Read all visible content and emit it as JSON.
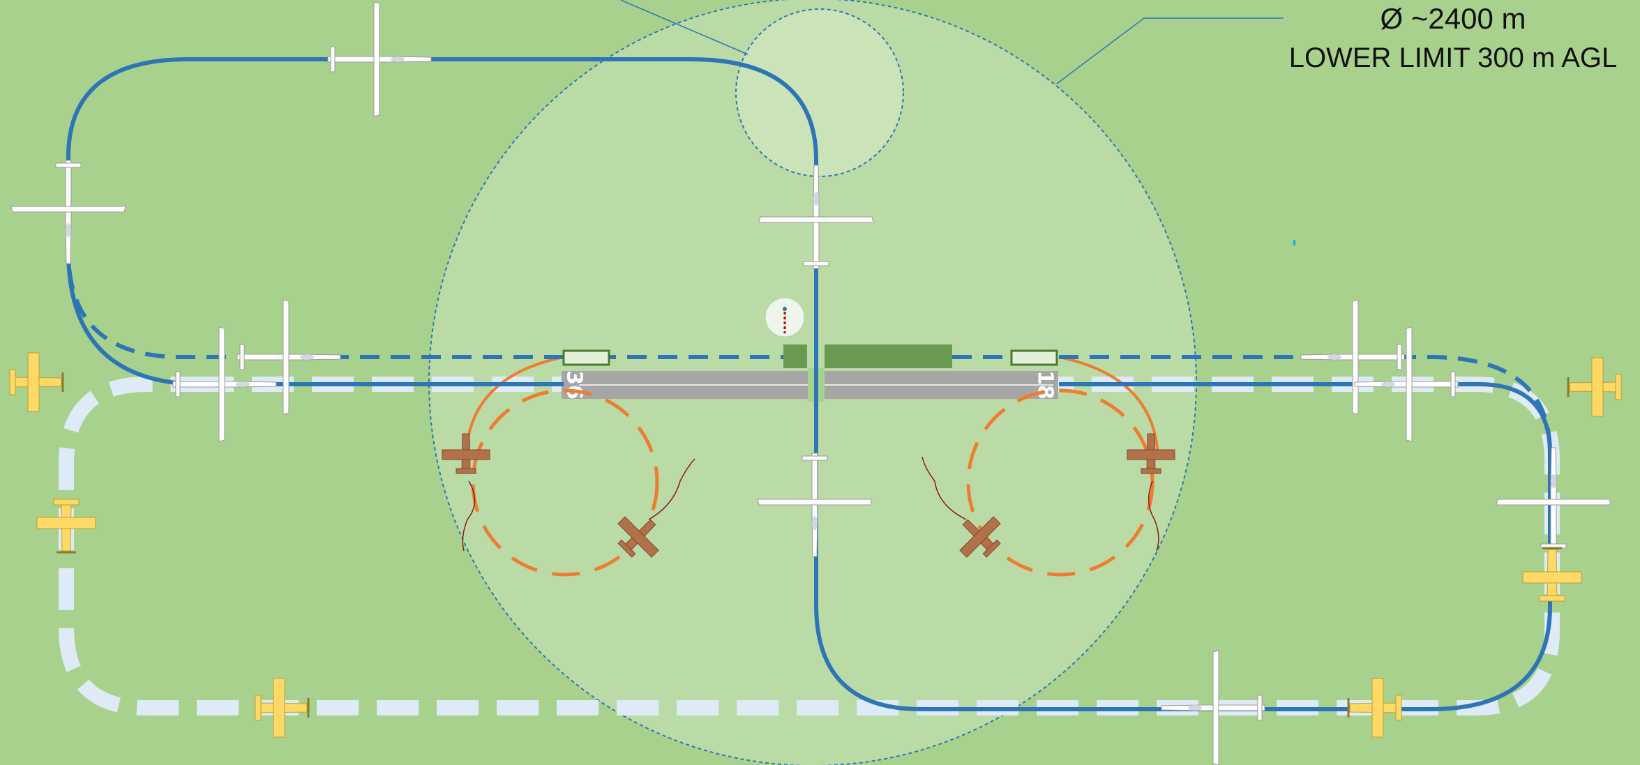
{
  "zone": {
    "diameter_label": "Ø ~2400 m",
    "lower_limit_label": "LOWER LIMIT 300 m AGL"
  },
  "runway": {
    "left_designator": "36",
    "right_designator": "18"
  },
  "colors": {
    "background": "#a9d18e",
    "zone_fill": "#c5e0b4",
    "glider_circuit": "#2e75b6",
    "tow_circuit": "#deebf7",
    "launch_circle": "#ed7d31",
    "runway": "#a6a6a6",
    "apron": "#6a9a52"
  },
  "icons": [
    "glider-icon",
    "tow-plane-icon",
    "tug-aircraft-icon",
    "windsock-icon"
  ]
}
